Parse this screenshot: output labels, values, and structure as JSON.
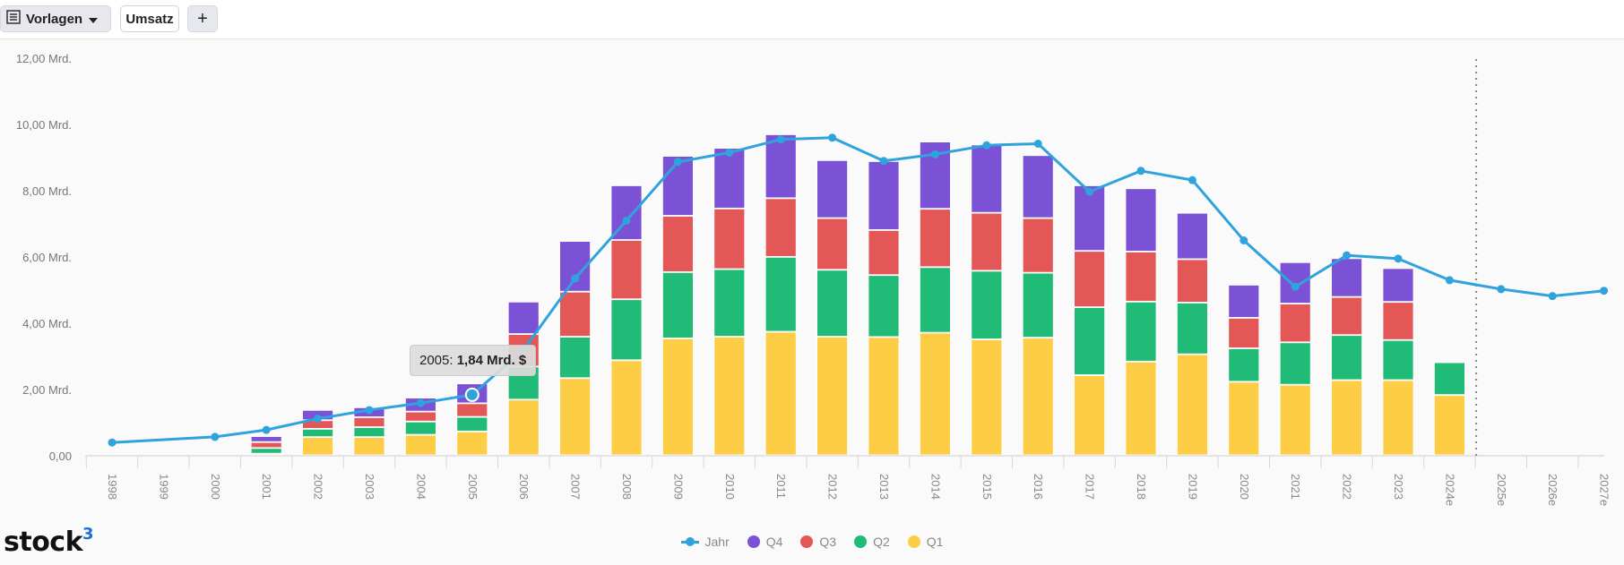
{
  "toolbar": {
    "templates_label": "Vorlagen",
    "umsatz_label": "Umsatz",
    "add_label": "+",
    "templates_icon": "list-icon",
    "caret_icon": "chevron-down-icon"
  },
  "logo": {
    "text": "stock",
    "sup": "3"
  },
  "tooltip": {
    "year": "2005:",
    "value": "1,84 Mrd. $"
  },
  "chart_data": {
    "type": "bar",
    "stacked": true,
    "title": "",
    "xlabel": "",
    "ylabel": "",
    "ylim": [
      0,
      12
    ],
    "y_ticks": [
      0,
      2,
      4,
      6,
      8,
      10,
      12
    ],
    "y_tick_labels": [
      "0,00",
      "2,00 Mrd.",
      "4,00 Mrd.",
      "6,00 Mrd.",
      "8,00 Mrd.",
      "10,00 Mrd.",
      "12,00 Mrd."
    ],
    "categories": [
      "1998",
      "1999",
      "2000",
      "2001",
      "2002",
      "2003",
      "2004",
      "2005",
      "2006",
      "2007",
      "2008",
      "2009",
      "2010",
      "2011",
      "2012",
      "2013",
      "2014",
      "2015",
      "2016",
      "2017",
      "2018",
      "2019",
      "2020",
      "2021",
      "2022",
      "2023",
      "2024e",
      "2025e",
      "2026e",
      "2027e"
    ],
    "forecast_divider_after": "2024e",
    "series": [
      {
        "name": "Q1",
        "color": "#fdcd45",
        "values": [
          null,
          null,
          null,
          0.05,
          0.55,
          0.55,
          0.62,
          0.72,
          1.68,
          2.33,
          2.87,
          3.53,
          3.58,
          3.73,
          3.58,
          3.57,
          3.7,
          3.5,
          3.55,
          2.42,
          2.83,
          3.05,
          2.22,
          2.13,
          2.27,
          2.27,
          1.82,
          null,
          null,
          null
        ]
      },
      {
        "name": "Q2",
        "color": "#20bb76",
        "values": [
          null,
          null,
          null,
          0.17,
          0.25,
          0.3,
          0.4,
          0.44,
          1.0,
          1.25,
          1.84,
          2.0,
          2.04,
          2.26,
          2.02,
          1.87,
          1.98,
          2.07,
          1.96,
          2.05,
          1.81,
          1.56,
          1.01,
          1.28,
          1.36,
          1.21,
          0.99,
          null,
          null,
          null
        ]
      },
      {
        "name": "Q3",
        "color": "#e35757",
        "values": [
          null,
          null,
          null,
          0.18,
          0.26,
          0.3,
          0.3,
          0.41,
          0.98,
          1.36,
          1.79,
          1.7,
          1.83,
          1.77,
          1.56,
          1.36,
          1.76,
          1.75,
          1.65,
          1.7,
          1.51,
          1.31,
          0.92,
          1.17,
          1.15,
          1.15,
          null,
          null,
          null,
          null
        ]
      },
      {
        "name": "Q4",
        "color": "#7b52d6",
        "values": [
          null,
          null,
          null,
          0.18,
          0.31,
          0.3,
          0.42,
          0.6,
          0.98,
          1.53,
          1.65,
          1.81,
          1.83,
          1.93,
          1.75,
          2.08,
          2.03,
          2.06,
          1.9,
          1.98,
          1.91,
          1.4,
          1.0,
          1.25,
          1.17,
          1.02,
          null,
          null,
          null,
          null
        ]
      },
      {
        "name": "Jahr",
        "type": "line",
        "color": "#2fa3dc",
        "values": [
          0.4,
          null,
          0.57,
          0.78,
          1.12,
          1.38,
          1.59,
          1.84,
          3.2,
          5.35,
          7.1,
          8.87,
          9.15,
          9.55,
          9.6,
          8.9,
          9.1,
          9.37,
          9.42,
          7.97,
          8.6,
          8.32,
          6.5,
          5.1,
          6.05,
          5.95,
          5.3,
          5.03,
          4.82,
          4.98
        ]
      }
    ],
    "legend": [
      "Jahr",
      "Q4",
      "Q3",
      "Q2",
      "Q1"
    ],
    "legend_position": "bottom-center"
  }
}
